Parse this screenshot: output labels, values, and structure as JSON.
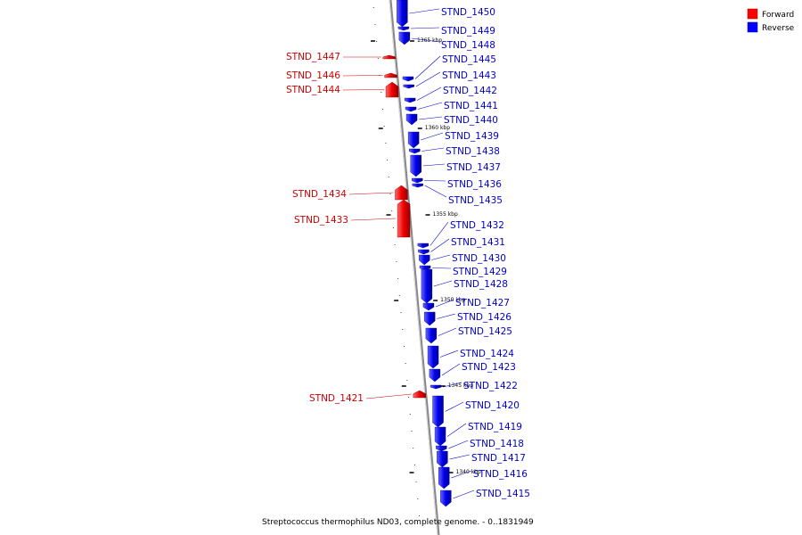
{
  "legend": {
    "forward": {
      "label": "Forward",
      "color": "#ff0000"
    },
    "reverse": {
      "label": "Reverse",
      "color": "#0000ff"
    }
  },
  "caption": "Streptococcus thermophilus ND03, complete genome. - 0..1831949",
  "ticks": [
    {
      "label": "1365 kbp"
    },
    {
      "label": "1360 kbp"
    },
    {
      "label": "1355 kbp"
    },
    {
      "label": "1350 kbp"
    },
    {
      "label": "1345 kbp"
    },
    {
      "label": "1340 kbp"
    }
  ],
  "genes": [
    {
      "label": "STND_1450",
      "strand": "reverse"
    },
    {
      "label": "STND_1449",
      "strand": "reverse"
    },
    {
      "label": "STND_1448",
      "strand": "reverse"
    },
    {
      "label": "STND_1447",
      "strand": "forward"
    },
    {
      "label": "STND_1445",
      "strand": "reverse"
    },
    {
      "label": "STND_1446",
      "strand": "forward"
    },
    {
      "label": "STND_1443",
      "strand": "reverse"
    },
    {
      "label": "STND_1444",
      "strand": "forward"
    },
    {
      "label": "STND_1442",
      "strand": "reverse"
    },
    {
      "label": "STND_1441",
      "strand": "reverse"
    },
    {
      "label": "STND_1440",
      "strand": "reverse"
    },
    {
      "label": "STND_1439",
      "strand": "reverse"
    },
    {
      "label": "STND_1438",
      "strand": "reverse"
    },
    {
      "label": "STND_1437",
      "strand": "reverse"
    },
    {
      "label": "STND_1436",
      "strand": "reverse"
    },
    {
      "label": "STND_1435",
      "strand": "reverse"
    },
    {
      "label": "STND_1434",
      "strand": "forward"
    },
    {
      "label": "STND_1433",
      "strand": "forward"
    },
    {
      "label": "STND_1432",
      "strand": "reverse"
    },
    {
      "label": "STND_1431",
      "strand": "reverse"
    },
    {
      "label": "STND_1430",
      "strand": "reverse"
    },
    {
      "label": "STND_1429",
      "strand": "reverse"
    },
    {
      "label": "STND_1428",
      "strand": "reverse"
    },
    {
      "label": "STND_1427",
      "strand": "reverse"
    },
    {
      "label": "STND_1426",
      "strand": "reverse"
    },
    {
      "label": "STND_1425",
      "strand": "reverse"
    },
    {
      "label": "STND_1424",
      "strand": "reverse"
    },
    {
      "label": "STND_1423",
      "strand": "reverse"
    },
    {
      "label": "STND_1422",
      "strand": "reverse"
    },
    {
      "label": "STND_1421",
      "strand": "forward"
    },
    {
      "label": "STND_1420",
      "strand": "reverse"
    },
    {
      "label": "STND_1419",
      "strand": "reverse"
    },
    {
      "label": "STND_1418",
      "strand": "reverse"
    },
    {
      "label": "STND_1417",
      "strand": "reverse"
    },
    {
      "label": "STND_1416",
      "strand": "reverse"
    },
    {
      "label": "STND_1415",
      "strand": "reverse"
    }
  ]
}
